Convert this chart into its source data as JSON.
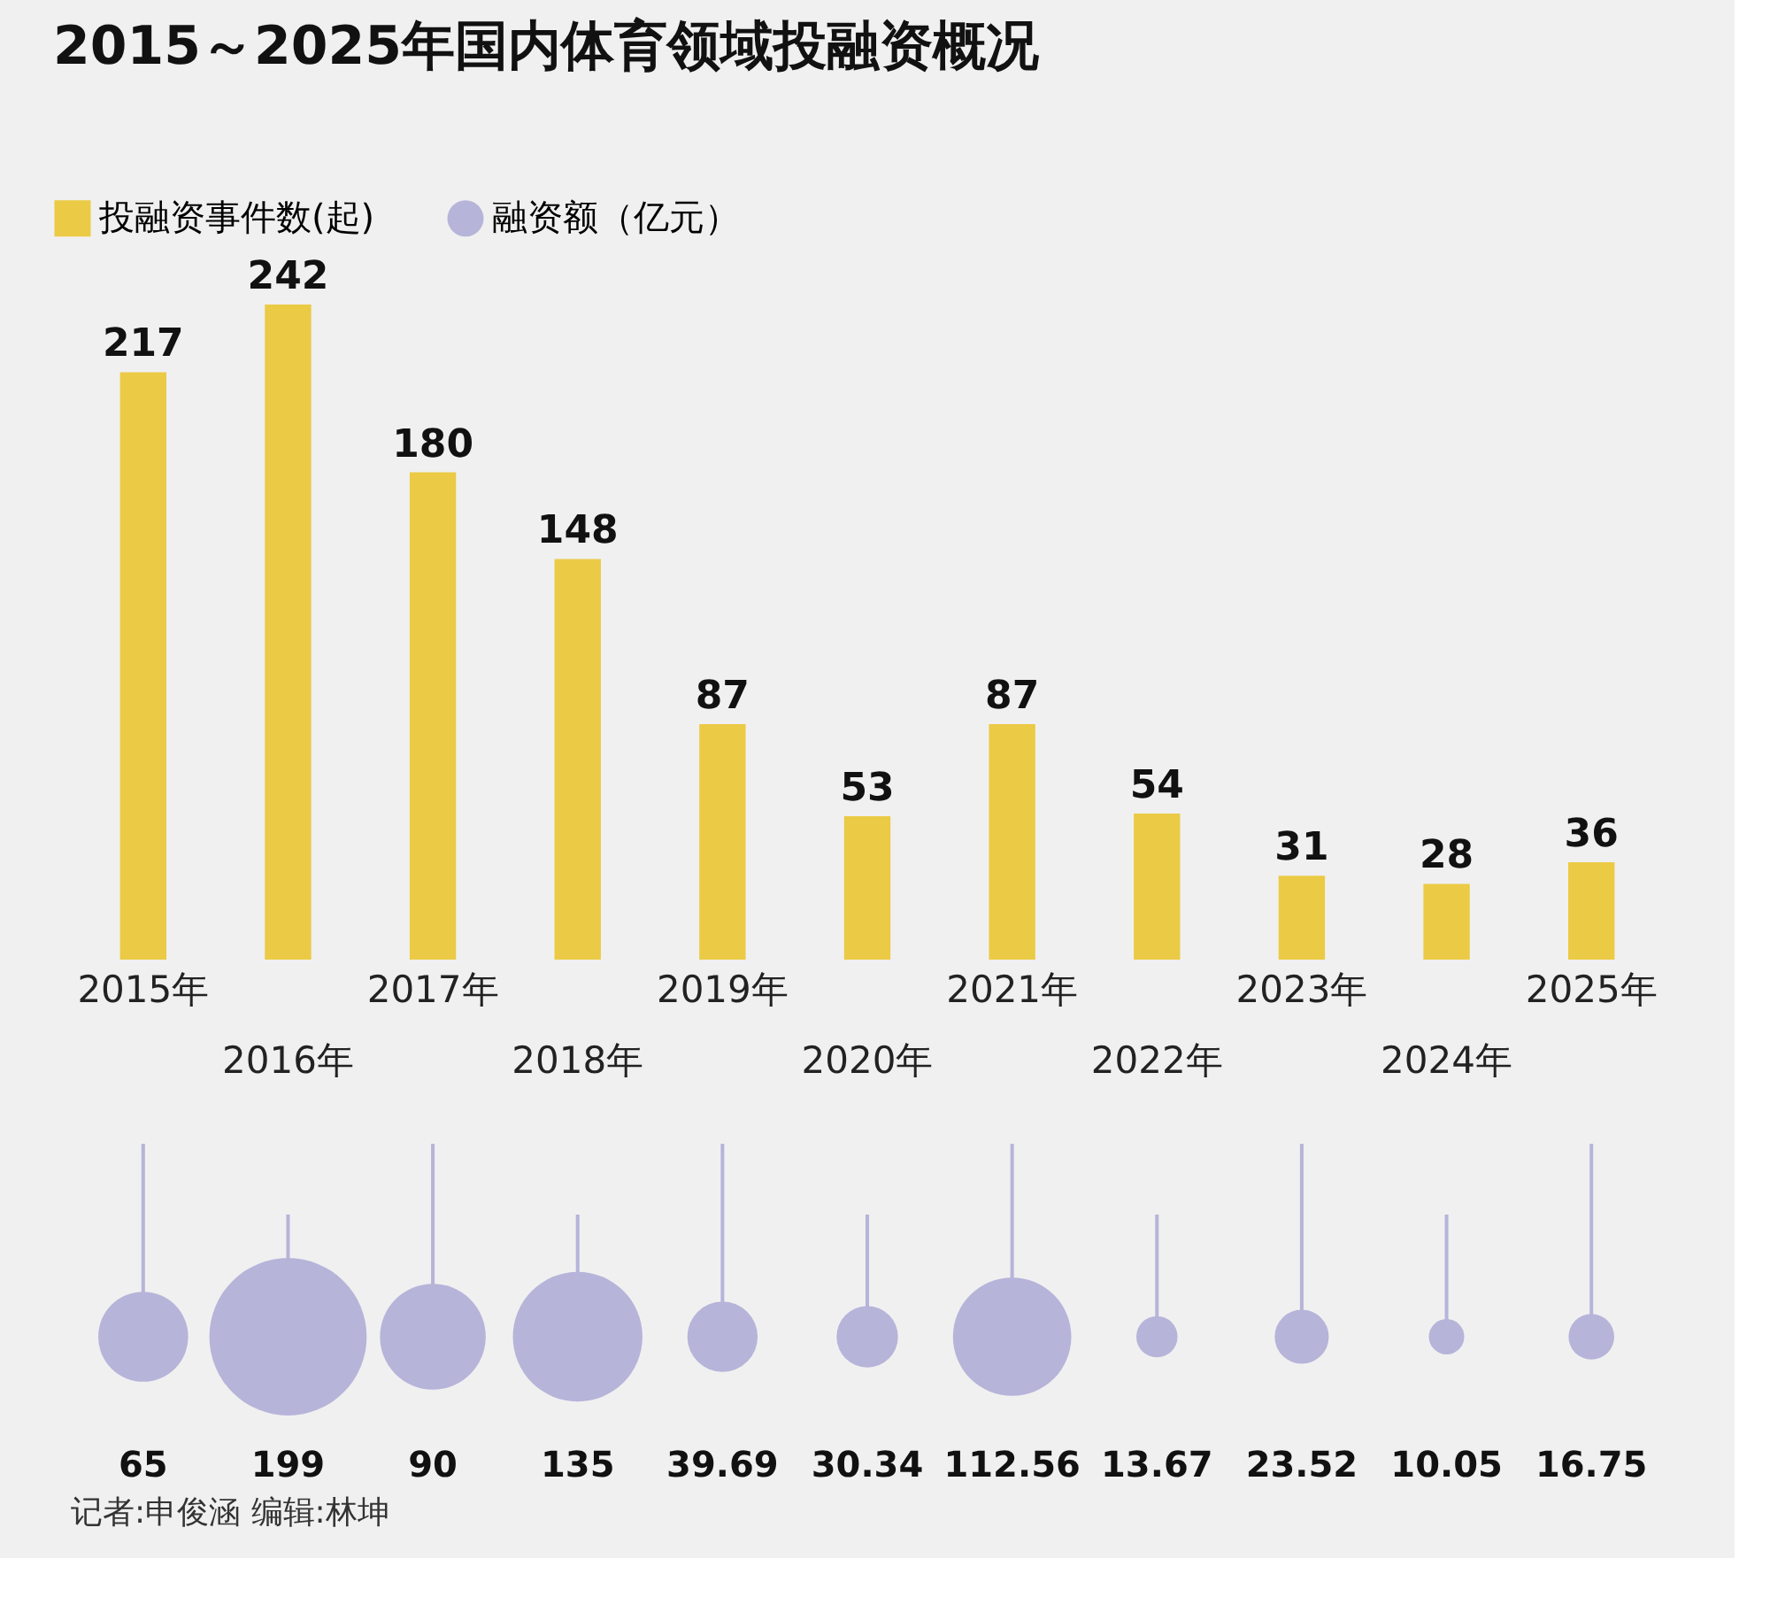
{
  "chart_data": [
    {
      "type": "bar",
      "title": "2015～2025年国内体育领域投融资概况",
      "categories": [
        "2015年",
        "2016年",
        "2017年",
        "2018年",
        "2019年",
        "2020年",
        "2021年",
        "2022年",
        "2023年",
        "2024年",
        "2025年"
      ],
      "series": [
        {
          "name": "投融资事件数(起)",
          "color": "#ebca45",
          "values": [
            217,
            242,
            180,
            148,
            87,
            53,
            87,
            54,
            31,
            28,
            36
          ]
        }
      ],
      "data_labels": true,
      "legend": "top left"
    },
    {
      "type": "other",
      "categories": [
        null,
        null,
        null,
        null,
        null,
        null,
        null,
        null,
        null,
        null,
        null
      ],
      "series": [
        {
          "name": "融资额（亿元）",
          "color": "#b6b4d9",
          "values": [
            65,
            199,
            90,
            135,
            39.69,
            30.34,
            112.56,
            13.67,
            23.52,
            10.05,
            16.75
          ]
        }
      ],
      "data_labels": true,
      "legend": "top left",
      "annotations": [
        "记者:申俊涵  编辑:林坤"
      ]
    }
  ]
}
